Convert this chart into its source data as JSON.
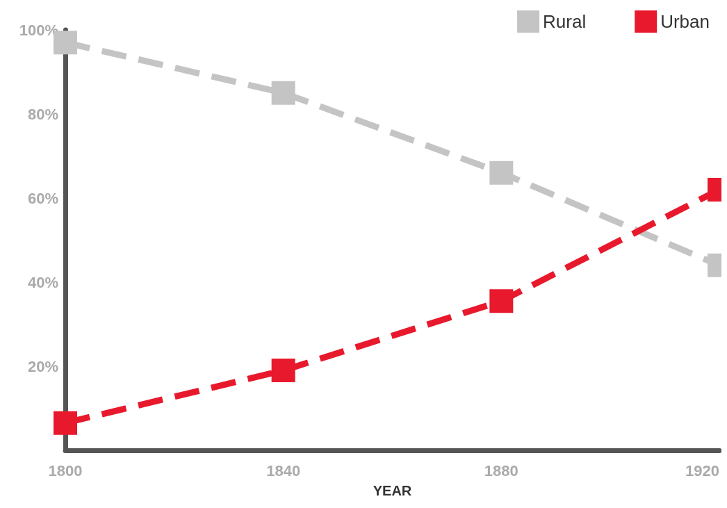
{
  "chart_data": {
    "type": "line",
    "xlabel": "YEAR",
    "x": [
      1800,
      1840,
      1880,
      1920
    ],
    "series": [
      {
        "name": "Rural",
        "color": "#c4c4c4",
        "values": [
          97,
          85,
          66,
          44
        ]
      },
      {
        "name": "Urban",
        "color": "#e8192c",
        "values": [
          6.5,
          19,
          35.5,
          62
        ]
      }
    ],
    "xlim": [
      1800,
      1920
    ],
    "xticks": [
      1800,
      1840,
      1880,
      1920
    ],
    "ylim": [
      0,
      100
    ],
    "yticks": [
      {
        "value": 20,
        "label": "20%"
      },
      {
        "value": 40,
        "label": "40%"
      },
      {
        "value": 60,
        "label": "60%"
      },
      {
        "value": 80,
        "label": "80%"
      },
      {
        "value": 100,
        "label": "100%"
      }
    ],
    "grid": false,
    "legend": "top right",
    "marker": "square",
    "line_style": "dashed"
  }
}
